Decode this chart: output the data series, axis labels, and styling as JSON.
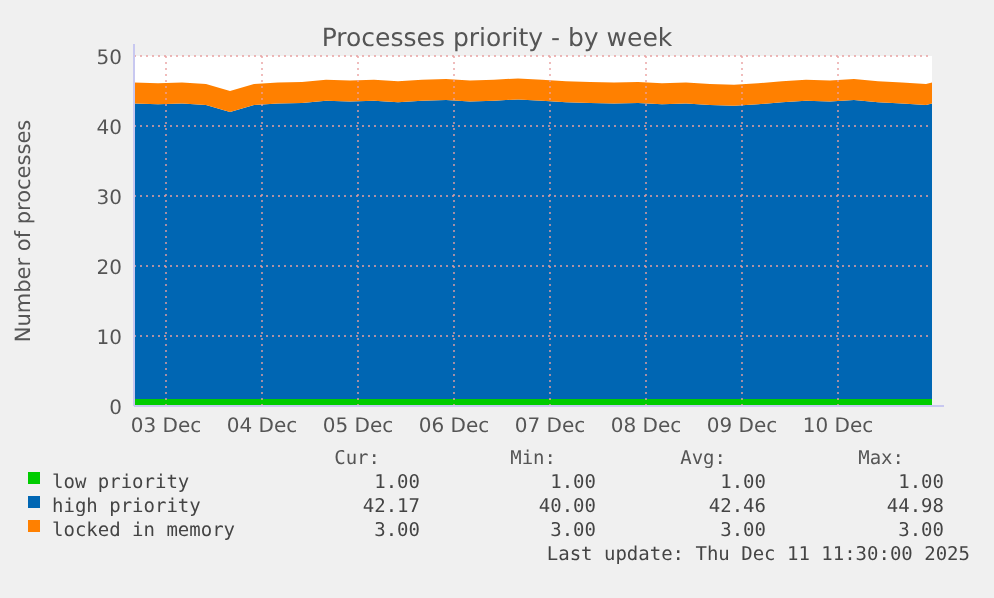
{
  "chart_data": {
    "type": "area",
    "stacked": true,
    "title": "Processes priority - by week",
    "ylabel": "Number of processes",
    "x": [
      "2025-12-03T04:00",
      "2025-12-03T10:00",
      "2025-12-03T16:00",
      "2025-12-03T22:00",
      "2025-12-04T04:00",
      "2025-12-04T10:00",
      "2025-12-04T16:00",
      "2025-12-04T22:00",
      "2025-12-05T04:00",
      "2025-12-05T10:00",
      "2025-12-05T16:00",
      "2025-12-05T22:00",
      "2025-12-06T04:00",
      "2025-12-06T10:00",
      "2025-12-06T16:00",
      "2025-12-06T22:00",
      "2025-12-07T04:00",
      "2025-12-07T10:00",
      "2025-12-07T16:00",
      "2025-12-07T22:00",
      "2025-12-08T04:00",
      "2025-12-08T10:00",
      "2025-12-08T16:00",
      "2025-12-08T22:00",
      "2025-12-09T04:00",
      "2025-12-09T10:00",
      "2025-12-09T16:00",
      "2025-12-09T22:00",
      "2025-12-10T04:00",
      "2025-12-10T10:00",
      "2025-12-10T16:00",
      "2025-12-10T22:00",
      "2025-12-11T04:00",
      "2025-12-11T10:00",
      "2025-12-11T11:30"
    ],
    "series": [
      {
        "name": "low priority",
        "color": "#00cc00",
        "values": [
          1,
          1,
          1,
          1,
          1,
          1,
          1,
          1,
          1,
          1,
          1,
          1,
          1,
          1,
          1,
          1,
          1,
          1,
          1,
          1,
          1,
          1,
          1,
          1,
          1,
          1,
          1,
          1,
          1,
          1,
          1,
          1,
          1,
          1,
          1
        ]
      },
      {
        "name": "high priority",
        "color": "#0066b3",
        "values": [
          42.2,
          42.1,
          42.2,
          42.0,
          41.0,
          42.0,
          42.2,
          42.3,
          42.6,
          42.5,
          42.6,
          42.4,
          42.6,
          42.7,
          42.5,
          42.6,
          42.8,
          42.6,
          42.4,
          42.3,
          42.2,
          42.3,
          42.1,
          42.2,
          42.0,
          41.9,
          42.1,
          42.4,
          42.6,
          42.5,
          42.7,
          42.4,
          42.2,
          42.0,
          42.2
        ]
      },
      {
        "name": "locked in memory",
        "color": "#ff8000",
        "values": [
          3,
          3,
          3,
          3,
          3,
          3,
          3,
          3,
          3,
          3,
          3,
          3,
          3,
          3,
          3,
          3,
          3,
          3,
          3,
          3,
          3,
          3,
          3,
          3,
          3,
          3,
          3,
          3,
          3,
          3,
          3,
          3,
          3,
          3,
          3
        ]
      }
    ],
    "xlim": [
      "2025-12-03T04:00",
      "2025-12-11T11:30"
    ],
    "xticks": [
      {
        "value": "2025-12-03T12:00",
        "label": "03 Dec"
      },
      {
        "value": "2025-12-04T12:00",
        "label": "04 Dec"
      },
      {
        "value": "2025-12-05T12:00",
        "label": "05 Dec"
      },
      {
        "value": "2025-12-06T12:00",
        "label": "06 Dec"
      },
      {
        "value": "2025-12-07T12:00",
        "label": "07 Dec"
      },
      {
        "value": "2025-12-08T12:00",
        "label": "08 Dec"
      },
      {
        "value": "2025-12-09T12:00",
        "label": "09 Dec"
      },
      {
        "value": "2025-12-10T12:00",
        "label": "10 Dec"
      }
    ],
    "ylim": [
      0,
      50
    ],
    "yticks": [
      0,
      10,
      20,
      30,
      40,
      50
    ],
    "grid": true,
    "legend": "bottom",
    "annotations": [
      "Cur:",
      "Min:",
      "Avg:",
      "Max:",
      "1.00",
      "1.00",
      "1.00",
      "1.00",
      "42.17",
      "40.00",
      "42.46",
      "44.98",
      "3.00",
      "3.00",
      "3.00",
      "3.00",
      "Last update: Thu Dec 11 11:30:00 2025"
    ]
  }
}
